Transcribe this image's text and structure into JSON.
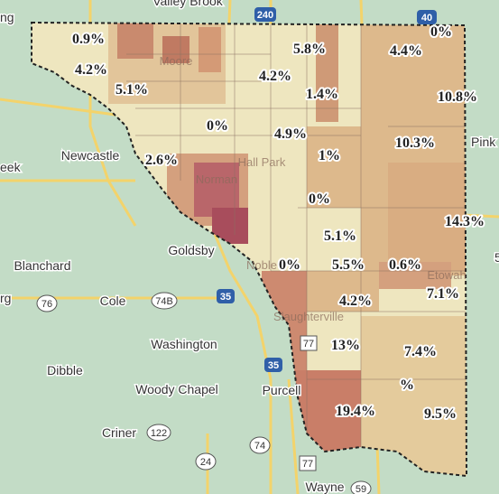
{
  "places": [
    "Valley Brook",
    "ng",
    "Newcastle",
    "eek",
    "Pink",
    "Blanchard",
    "rg",
    "Cole",
    "Goldsby",
    "Washington",
    "Dibble",
    "Woody Chapel",
    "Purcell",
    "Criner",
    "Wayne",
    "Hall Park",
    "Norman",
    "Noble",
    "Slaughterville",
    "Etowah",
    "Moore",
    "5"
  ],
  "shields": [
    "240",
    "40",
    "76",
    "74B",
    "35",
    "35",
    "77",
    "122",
    "74",
    "24",
    "77",
    "59"
  ],
  "labels": [
    "0.9%",
    "4.2%",
    "5.1%",
    "5.8%",
    "4.2%",
    "1.4%",
    "0%",
    "4.4%",
    "10.8%",
    "0%",
    "4.9%",
    "2.6%",
    "1%",
    "10.3%",
    "0%",
    "14.3%",
    "5.1%",
    "0%",
    "5.5%",
    "0.6%",
    "7.1%",
    "4.2%",
    "13%",
    "7.4%",
    "%",
    "19.4%",
    "9.5%"
  ]
}
